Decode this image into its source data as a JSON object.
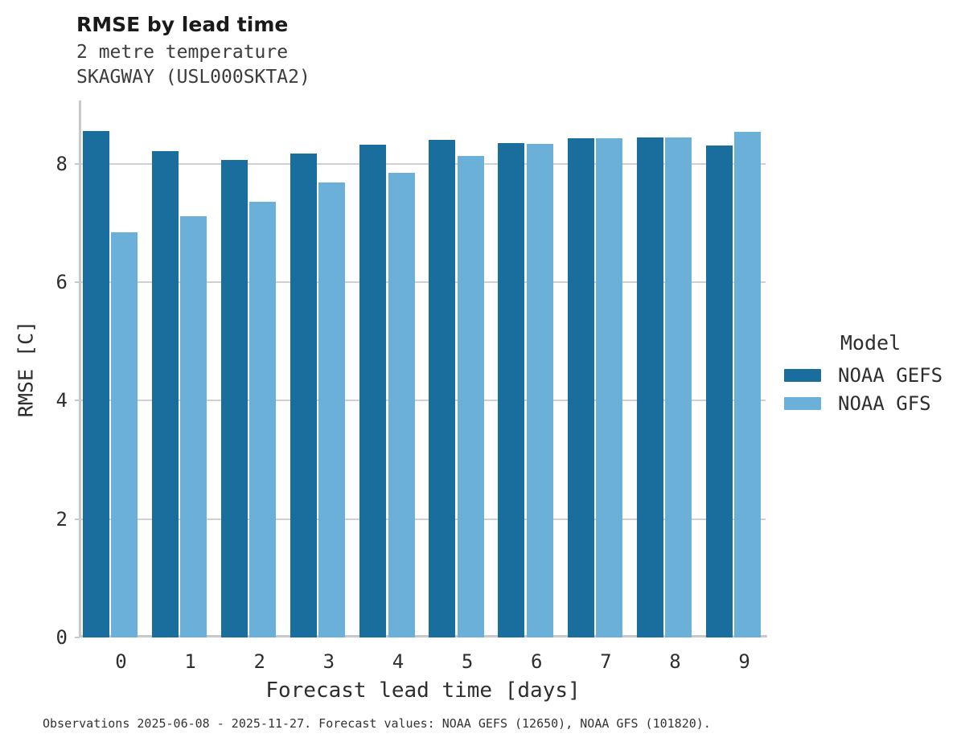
{
  "header": {
    "title": "RMSE by lead time",
    "subtitle_line1": "2 metre temperature",
    "subtitle_line2": "SKAGWAY (USL000SKTA2)"
  },
  "chart_data": {
    "type": "bar",
    "title": "RMSE by lead time",
    "subtitle": [
      "2 metre temperature",
      "SKAGWAY (USL000SKTA2)"
    ],
    "categories": [
      "0",
      "1",
      "2",
      "3",
      "4",
      "5",
      "6",
      "7",
      "8",
      "9"
    ],
    "series": [
      {
        "name": "NOAA GEFS",
        "color": "#1a6e9e",
        "values": [
          8.56,
          8.21,
          8.06,
          8.18,
          8.33,
          8.41,
          8.35,
          8.43,
          8.45,
          8.31
        ]
      },
      {
        "name": "NOAA GFS",
        "color": "#6ab0d9",
        "values": [
          6.84,
          7.12,
          7.36,
          7.68,
          7.85,
          8.14,
          8.34,
          8.43,
          8.45,
          8.54
        ]
      }
    ],
    "xlabel": "Forecast lead time [days]",
    "ylabel": "RMSE [C]",
    "ylim": [
      0,
      9.07
    ],
    "yticks": [
      "0",
      "2",
      "4",
      "6",
      "8"
    ],
    "grid": true,
    "legend": {
      "title": "Model",
      "position": "right"
    }
  },
  "colors": {
    "series_dark": "#1a6e9e",
    "series_light": "#6ab0d9",
    "gridline": "#d0d0d0",
    "spine": "#c9c9c9",
    "text": "#2e2e2e"
  },
  "footnote": "Observations 2025-06-08 - 2025-11-27. Forecast values: NOAA GEFS (12650), NOAA GFS (101820)."
}
